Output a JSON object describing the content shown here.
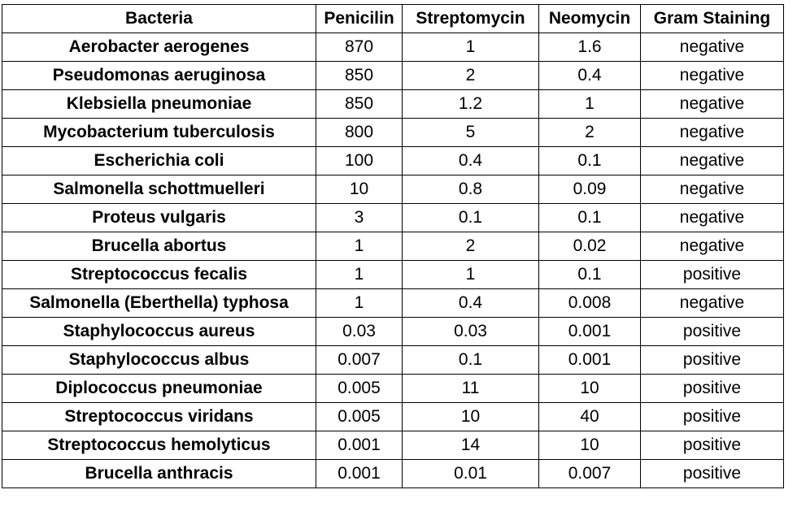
{
  "table": {
    "headers": [
      "Bacteria",
      "Penicilin",
      "Streptomycin",
      "Neomycin",
      "Gram Staining"
    ],
    "rows": [
      [
        "Aerobacter aerogenes",
        "870",
        "1",
        "1.6",
        "negative"
      ],
      [
        "Pseudomonas aeruginosa",
        "850",
        "2",
        "0.4",
        "negative"
      ],
      [
        "Klebsiella pneumoniae",
        "850",
        "1.2",
        "1",
        "negative"
      ],
      [
        "Mycobacterium tuberculosis",
        "800",
        "5",
        "2",
        "negative"
      ],
      [
        "Escherichia coli",
        "100",
        "0.4",
        "0.1",
        "negative"
      ],
      [
        "Salmonella schottmuelleri",
        "10",
        "0.8",
        "0.09",
        "negative"
      ],
      [
        "Proteus vulgaris",
        "3",
        "0.1",
        "0.1",
        "negative"
      ],
      [
        "Brucella abortus",
        "1",
        "2",
        "0.02",
        "negative"
      ],
      [
        "Streptococcus fecalis",
        "1",
        "1",
        "0.1",
        "positive"
      ],
      [
        "Salmonella (Eberthella) typhosa",
        "1",
        "0.4",
        "0.008",
        "negative"
      ],
      [
        "Staphylococcus aureus",
        "0.03",
        "0.03",
        "0.001",
        "positive"
      ],
      [
        "Staphylococcus albus",
        "0.007",
        "0.1",
        "0.001",
        "positive"
      ],
      [
        "Diplococcus pneumoniae",
        "0.005",
        "11",
        "10",
        "positive"
      ],
      [
        "Streptococcus viridans",
        "0.005",
        "10",
        "40",
        "positive"
      ],
      [
        "Streptococcus hemolyticus",
        "0.001",
        "14",
        "10",
        "positive"
      ],
      [
        "Brucella anthracis",
        "0.001",
        "0.01",
        "0.007",
        "positive"
      ]
    ]
  },
  "chart_data": {
    "type": "table",
    "columns": [
      "Bacteria",
      "Penicilin",
      "Streptomycin",
      "Neomycin",
      "Gram Staining"
    ],
    "rows": [
      [
        "Aerobacter aerogenes",
        870,
        1,
        1.6,
        "negative"
      ],
      [
        "Pseudomonas aeruginosa",
        850,
        2,
        0.4,
        "negative"
      ],
      [
        "Klebsiella pneumoniae",
        850,
        1.2,
        1,
        "negative"
      ],
      [
        "Mycobacterium tuberculosis",
        800,
        5,
        2,
        "negative"
      ],
      [
        "Escherichia coli",
        100,
        0.4,
        0.1,
        "negative"
      ],
      [
        "Salmonella schottmuelleri",
        10,
        0.8,
        0.09,
        "negative"
      ],
      [
        "Proteus vulgaris",
        3,
        0.1,
        0.1,
        "negative"
      ],
      [
        "Brucella abortus",
        1,
        2,
        0.02,
        "negative"
      ],
      [
        "Streptococcus fecalis",
        1,
        1,
        0.1,
        "positive"
      ],
      [
        "Salmonella (Eberthella) typhosa",
        1,
        0.4,
        0.008,
        "negative"
      ],
      [
        "Staphylococcus aureus",
        0.03,
        0.03,
        0.001,
        "positive"
      ],
      [
        "Staphylococcus albus",
        0.007,
        0.1,
        0.001,
        "positive"
      ],
      [
        "Diplococcus pneumoniae",
        0.005,
        11,
        10,
        "positive"
      ],
      [
        "Streptococcus viridans",
        0.005,
        10,
        40,
        "positive"
      ],
      [
        "Streptococcus hemolyticus",
        0.001,
        14,
        10,
        "positive"
      ],
      [
        "Brucella anthracis",
        0.001,
        0.01,
        0.007,
        "positive"
      ]
    ]
  }
}
